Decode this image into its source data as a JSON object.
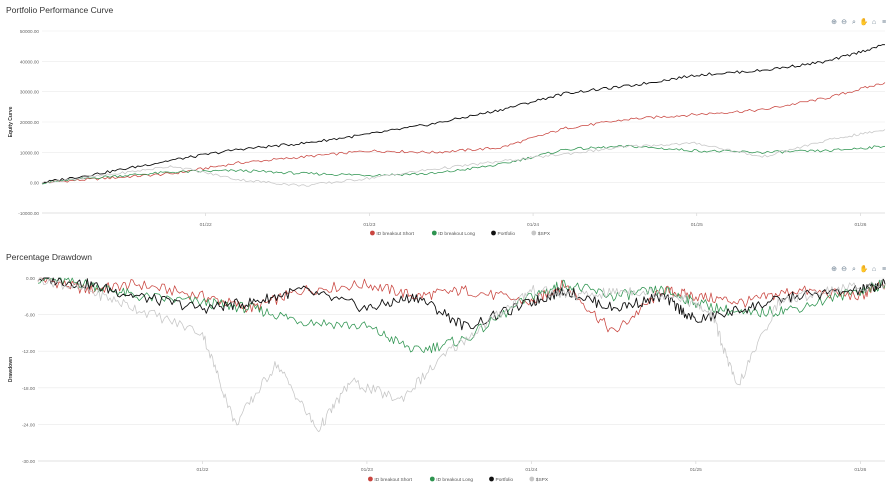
{
  "toolbar_icons": [
    "zoom-in-icon",
    "zoom-out-icon",
    "zoom-select-icon",
    "pan-hand-icon",
    "home-icon",
    "menu-icon"
  ],
  "chart_data": [
    {
      "title": "Portfolio Performance Curve",
      "type": "line",
      "ylabel": "Equity Curve",
      "ylim": [
        -10000,
        50000
      ],
      "yticks": [
        "50000.00",
        "40000.00",
        "30000.00",
        "20000.00",
        "10000.00",
        "0.00",
        "-10000.00"
      ],
      "yticks_values": [
        50000,
        40000,
        30000,
        20000,
        10000,
        0,
        -10000
      ],
      "xticks": [
        "01/22",
        "01/23",
        "01/24",
        "01/25",
        "01/26"
      ],
      "xticks_values": [
        2022.0,
        2023.0,
        2024.0,
        2025.0,
        2026.0
      ],
      "xlim": [
        2021.0,
        2026.15
      ],
      "legend": {
        "position": "bottom"
      },
      "series": [
        {
          "name": "ID breakout Short",
          "color": "#c9453f",
          "x": [
            2021.0,
            2021.4,
            2021.8,
            2022.2,
            2022.6,
            2023.0,
            2023.4,
            2023.8,
            2024.2,
            2024.6,
            2025.0,
            2025.4,
            2025.8,
            2026.15
          ],
          "y": [
            0,
            1500,
            3000,
            6500,
            8500,
            10500,
            10000,
            11500,
            18000,
            21000,
            22500,
            24000,
            28000,
            33000
          ]
        },
        {
          "name": "ID breakout Long",
          "color": "#2e9450",
          "x": [
            2021.0,
            2021.4,
            2021.8,
            2022.2,
            2022.6,
            2023.0,
            2023.4,
            2023.8,
            2024.2,
            2024.6,
            2025.0,
            2025.4,
            2025.8,
            2026.15
          ],
          "y": [
            0,
            2000,
            3500,
            4000,
            3000,
            2500,
            3000,
            6000,
            11000,
            12000,
            10500,
            10000,
            10500,
            12000
          ]
        },
        {
          "name": "Portfolio",
          "color": "#111111",
          "x": [
            2021.0,
            2021.4,
            2021.8,
            2022.2,
            2022.6,
            2023.0,
            2023.4,
            2023.8,
            2024.2,
            2024.6,
            2025.0,
            2025.4,
            2025.8,
            2026.15
          ],
          "y": [
            0,
            3500,
            7500,
            11000,
            13000,
            16000,
            19500,
            24000,
            29500,
            32000,
            35500,
            37000,
            40000,
            45500
          ]
        },
        {
          "name": "$SPX",
          "color": "#c6c6c6",
          "x": [
            2021.0,
            2021.4,
            2021.8,
            2022.2,
            2022.6,
            2023.0,
            2023.4,
            2023.8,
            2024.2,
            2024.6,
            2025.0,
            2025.4,
            2025.8,
            2026.15
          ],
          "y": [
            0,
            2500,
            5500,
            1000,
            -1000,
            1500,
            4500,
            7000,
            9500,
            12000,
            13000,
            8500,
            14000,
            17500
          ]
        }
      ]
    },
    {
      "title": "Percentage Drawdown",
      "type": "line",
      "ylabel": "Drawdown",
      "ylim": [
        -30,
        0
      ],
      "yticks": [
        "0.00",
        "-6.00",
        "-12.00",
        "-18.00",
        "-24.00",
        "-30.00"
      ],
      "yticks_values": [
        0,
        -6,
        -12,
        -18,
        -24,
        -30
      ],
      "xticks": [
        "01/22",
        "01/23",
        "01/24",
        "01/25",
        "01/26"
      ],
      "xticks_values": [
        2022.0,
        2023.0,
        2024.0,
        2025.0,
        2026.0
      ],
      "xlim": [
        2021.0,
        2026.15
      ],
      "legend": {
        "position": "bottom"
      },
      "series": [
        {
          "name": "ID breakout Short",
          "color": "#c9453f",
          "x": [
            2021.0,
            2021.3,
            2021.6,
            2022.0,
            2022.3,
            2022.6,
            2023.0,
            2023.3,
            2023.6,
            2024.0,
            2024.2,
            2024.5,
            2024.8,
            2025.0,
            2025.3,
            2025.6,
            2026.0,
            2026.15
          ],
          "y": [
            0,
            -2,
            -1,
            -3,
            -5,
            -2,
            -1,
            -3,
            -2,
            -4,
            -1,
            -9,
            -2,
            -3,
            -4,
            -2,
            -3,
            -1
          ]
        },
        {
          "name": "ID breakout Long",
          "color": "#2e9450",
          "x": [
            2021.0,
            2021.3,
            2021.6,
            2022.0,
            2022.3,
            2022.6,
            2023.0,
            2023.3,
            2023.6,
            2024.0,
            2024.2,
            2024.5,
            2024.8,
            2025.0,
            2025.3,
            2025.6,
            2026.0,
            2026.15
          ],
          "y": [
            0,
            -1,
            -3,
            -4,
            -5,
            -7,
            -8,
            -12,
            -10,
            -3,
            -1,
            -3,
            -2,
            -4,
            -6,
            -5,
            -2,
            -1
          ]
        },
        {
          "name": "Portfolio",
          "color": "#111111",
          "x": [
            2021.0,
            2021.3,
            2021.6,
            2022.0,
            2022.3,
            2022.6,
            2023.0,
            2023.3,
            2023.6,
            2024.0,
            2024.2,
            2024.5,
            2024.8,
            2025.0,
            2025.3,
            2025.6,
            2026.0,
            2026.15
          ],
          "y": [
            0,
            -1,
            -3,
            -5,
            -4,
            -2,
            -5,
            -3,
            -8,
            -4,
            -2,
            -5,
            -3,
            -7,
            -5,
            -3,
            -2,
            -1
          ]
        },
        {
          "name": "$SPX",
          "color": "#c6c6c6",
          "x": [
            2021.0,
            2021.3,
            2021.6,
            2022.0,
            2022.2,
            2022.45,
            2022.7,
            2022.9,
            2023.2,
            2023.5,
            2023.8,
            2024.0,
            2024.3,
            2024.6,
            2024.9,
            2025.1,
            2025.25,
            2025.5,
            2025.8,
            2026.15
          ],
          "y": [
            0,
            -2,
            -5,
            -9,
            -24,
            -14,
            -25,
            -17,
            -20,
            -12,
            -6,
            -2,
            -3,
            -2,
            -3,
            -6,
            -18,
            -4,
            -2,
            -1
          ]
        }
      ]
    }
  ]
}
